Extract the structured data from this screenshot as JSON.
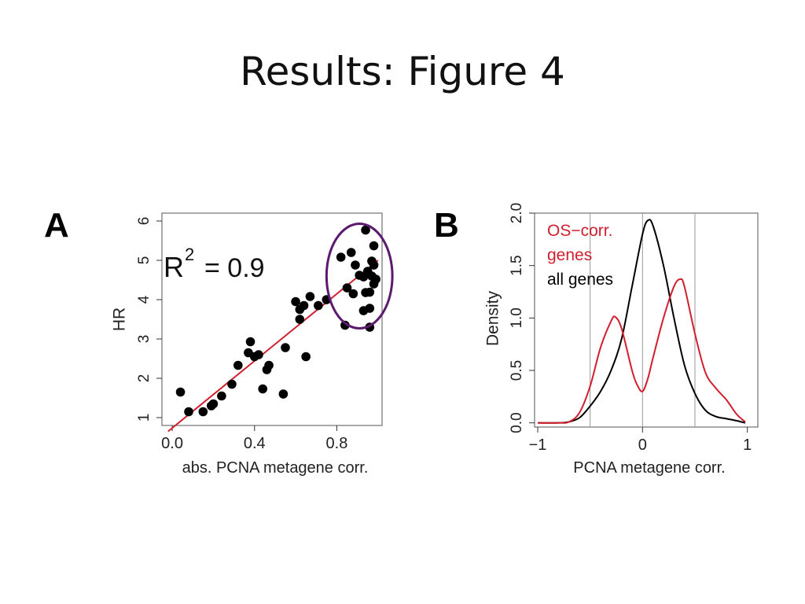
{
  "slide": {
    "title": "Results: Figure 4"
  },
  "panels": {
    "a_label": "A",
    "b_label": "B"
  },
  "colors": {
    "regression_line": "#d11f2e",
    "highlight_ellipse": "#5b1a6e",
    "os_density": "#d11f2e",
    "all_density": "#000000",
    "points": "#000000"
  },
  "chart_data": [
    {
      "type": "scatter",
      "xlabel": "abs. PCNA metagene corr.",
      "ylabel": "HR",
      "xlim": [
        -0.05,
        1.02
      ],
      "ylim": [
        0.8,
        6.2
      ],
      "xticks": [
        0.0,
        0.4,
        0.8
      ],
      "xtick_labels": [
        "0.0",
        "0.4",
        "0.8"
      ],
      "yticks": [
        1,
        2,
        3,
        4,
        5,
        6
      ],
      "ytick_labels": [
        "1",
        "2",
        "3",
        "4",
        "5",
        "6"
      ],
      "annotation": {
        "base": "R",
        "exponent": "2",
        "rest": "= 0.9"
      },
      "regression": {
        "x": [
          -0.02,
          1.0
        ],
        "y": [
          0.65,
          5.0
        ]
      },
      "highlight": {
        "shape": "ellipse",
        "center": [
          0.91,
          4.6
        ],
        "radius_x": 0.16,
        "radius_y": 1.33
      },
      "points": [
        [
          0.04,
          1.65
        ],
        [
          0.08,
          1.15
        ],
        [
          0.15,
          1.15
        ],
        [
          0.19,
          1.3
        ],
        [
          0.2,
          1.35
        ],
        [
          0.24,
          1.55
        ],
        [
          0.29,
          1.85
        ],
        [
          0.32,
          2.33
        ],
        [
          0.37,
          2.65
        ],
        [
          0.38,
          2.93
        ],
        [
          0.4,
          2.55
        ],
        [
          0.42,
          2.6
        ],
        [
          0.44,
          1.73
        ],
        [
          0.46,
          2.22
        ],
        [
          0.47,
          2.33
        ],
        [
          0.54,
          1.6
        ],
        [
          0.55,
          2.78
        ],
        [
          0.6,
          3.95
        ],
        [
          0.62,
          3.5
        ],
        [
          0.62,
          3.75
        ],
        [
          0.64,
          3.85
        ],
        [
          0.65,
          2.55
        ],
        [
          0.67,
          4.08
        ],
        [
          0.71,
          3.85
        ],
        [
          0.75,
          4.0
        ],
        [
          0.82,
          5.08
        ],
        [
          0.84,
          3.35
        ],
        [
          0.85,
          4.3
        ],
        [
          0.87,
          5.2
        ],
        [
          0.88,
          4.15
        ],
        [
          0.89,
          4.88
        ],
        [
          0.91,
          4.62
        ],
        [
          0.93,
          4.58
        ],
        [
          0.93,
          3.72
        ],
        [
          0.94,
          5.77
        ],
        [
          0.94,
          4.18
        ],
        [
          0.95,
          4.72
        ],
        [
          0.96,
          3.3
        ],
        [
          0.96,
          3.78
        ],
        [
          0.96,
          4.19
        ],
        [
          0.97,
          4.98
        ],
        [
          0.98,
          4.4
        ],
        [
          0.98,
          5.37
        ],
        [
          0.98,
          4.88
        ],
        [
          0.99,
          4.52
        ],
        [
          0.97,
          4.6
        ]
      ]
    },
    {
      "type": "line",
      "xlabel": "PCNA metagene corr.",
      "ylabel": "Density",
      "xlim": [
        -1.03,
        1.1
      ],
      "ylim": [
        -0.04,
        2.0
      ],
      "xticks": [
        -1,
        0,
        1
      ],
      "xtick_labels": [
        "−1",
        "0",
        "1"
      ],
      "yticks": [
        0.0,
        0.5,
        1.0,
        1.5,
        2.0
      ],
      "ytick_labels": [
        "0.0",
        "0.5",
        "1.0",
        "1.5",
        "2.0"
      ],
      "reference_lines": [
        -0.5,
        0.0,
        0.5
      ],
      "legend": [
        {
          "label": "OS−corr.",
          "color": "#d11f2e"
        },
        {
          "label": "genes",
          "color": "#d11f2e"
        },
        {
          "label": "all genes",
          "color": "#000000"
        }
      ],
      "legend_position": "top-left",
      "series": [
        {
          "name": "OS−corr. genes",
          "color": "#d11f2e",
          "x": [
            -1.0,
            -0.8,
            -0.7,
            -0.6,
            -0.5,
            -0.4,
            -0.3,
            -0.26,
            -0.2,
            -0.1,
            -0.05,
            0.0,
            0.05,
            0.1,
            0.2,
            0.3,
            0.36,
            0.4,
            0.5,
            0.6,
            0.7,
            0.8,
            0.9,
            0.98
          ],
          "y": [
            0.0,
            0.0,
            0.01,
            0.1,
            0.35,
            0.72,
            0.97,
            1.01,
            0.9,
            0.5,
            0.36,
            0.3,
            0.42,
            0.62,
            1.0,
            1.3,
            1.37,
            1.3,
            0.85,
            0.48,
            0.33,
            0.22,
            0.08,
            0.01
          ]
        },
        {
          "name": "all genes",
          "color": "#000000",
          "x": [
            -1.0,
            -0.8,
            -0.7,
            -0.6,
            -0.5,
            -0.4,
            -0.3,
            -0.2,
            -0.1,
            0.0,
            0.05,
            0.1,
            0.2,
            0.3,
            0.4,
            0.5,
            0.6,
            0.7,
            0.8,
            0.9,
            0.98
          ],
          "y": [
            0.0,
            0.0,
            0.01,
            0.05,
            0.16,
            0.3,
            0.5,
            0.8,
            1.3,
            1.8,
            1.93,
            1.88,
            1.5,
            1.0,
            0.55,
            0.28,
            0.12,
            0.06,
            0.04,
            0.02,
            0.0
          ]
        }
      ]
    }
  ]
}
